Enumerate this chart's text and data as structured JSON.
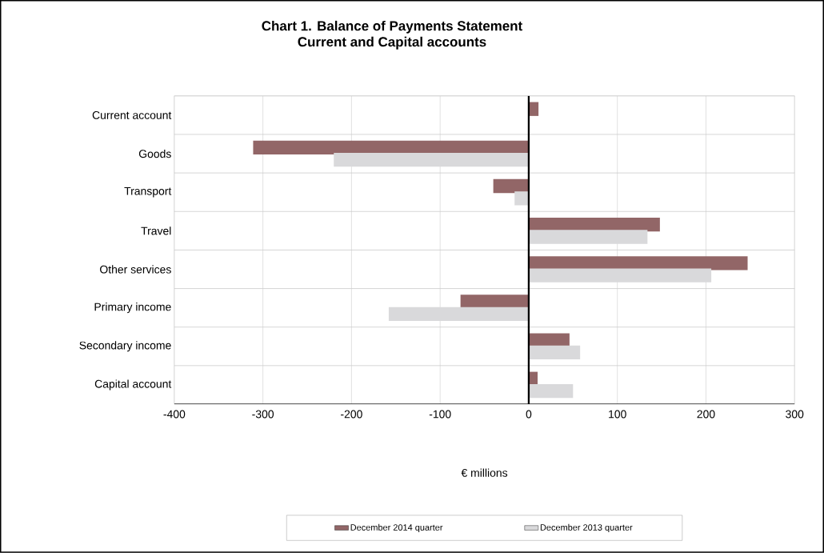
{
  "chart_data": {
    "type": "bar",
    "orientation": "horizontal",
    "title": "Chart 1. Balance of Payments Statement",
    "subtitle": "Current and Capital accounts",
    "xlabel": "€ millions",
    "categories": [
      "Current account",
      "Goods",
      "Transport",
      "Travel",
      "Other services",
      "Primary income",
      "Secondary income",
      "Capital account"
    ],
    "series": [
      {
        "name": "December 2014 quarter",
        "color": "#926667",
        "values": [
          11,
          -311,
          -40,
          148,
          247,
          -77,
          46,
          10
        ]
      },
      {
        "name": "December 2013 quarter",
        "color": "#d9d9db",
        "values": [
          null,
          -220,
          -16,
          134,
          206,
          -158,
          58,
          50
        ]
      }
    ],
    "xlim": [
      -400,
      300
    ],
    "xticks": [
      -400,
      -300,
      -200,
      -100,
      0,
      100,
      200,
      300
    ],
    "grid": true,
    "legend": "bottom"
  }
}
